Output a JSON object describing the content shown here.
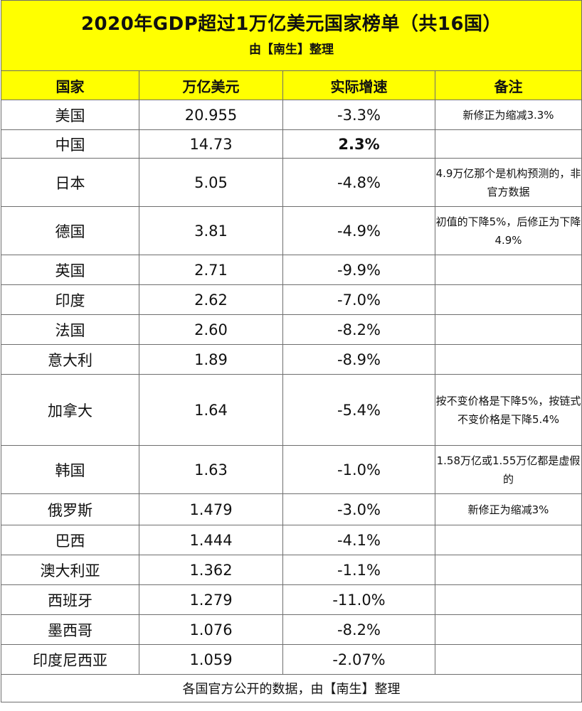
{
  "title": "2020年GDP超过1万亿美元国家榜单（共16国）",
  "subtitle": "由【南生】整理",
  "headers": [
    "国家",
    "万亿美元",
    "实际增速",
    "备注"
  ],
  "rows": [
    {
      "country": "美国",
      "gdp": "20.955",
      "growth": "-3.3%",
      "note": "新修正为缩减3.3%"
    },
    {
      "country": "中国",
      "gdp": "14.73",
      "growth": "2.3%",
      "note": ""
    },
    {
      "country": "日本",
      "gdp": "5.05",
      "growth": "-4.8%",
      "note": "4.9万亿那个是机构预测的，非官方数据"
    },
    {
      "country": "德国",
      "gdp": "3.81",
      "growth": "-4.9%",
      "note": "初值的下降5%，后修正为下降4.9%"
    },
    {
      "country": "英国",
      "gdp": "2.71",
      "growth": "-9.9%",
      "note": ""
    },
    {
      "country": "印度",
      "gdp": "2.62",
      "growth": "-7.0%",
      "note": ""
    },
    {
      "country": "法国",
      "gdp": "2.60",
      "growth": "-8.2%",
      "note": ""
    },
    {
      "country": "意大利",
      "gdp": "1.89",
      "growth": "-8.9%",
      "note": ""
    },
    {
      "country": "加拿大",
      "gdp": "1.64",
      "growth": "-5.4%",
      "note": "按不变价格是下降5%，按链式不变价格是下降5.4%"
    },
    {
      "country": "韩国",
      "gdp": "1.63",
      "growth": "-1.0%",
      "note": "1.58万亿或1.55万亿都是虚假的"
    },
    {
      "country": "俄罗斯",
      "gdp": "1.479",
      "growth": "-3.0%",
      "note": "新修正为缩减3%"
    },
    {
      "country": "巴西",
      "gdp": "1.444",
      "growth": "-4.1%",
      "note": ""
    },
    {
      "country": "澳大利亚",
      "gdp": "1.362",
      "growth": "-1.1%",
      "note": ""
    },
    {
      "country": "西班牙",
      "gdp": "1.279",
      "growth": "-11.0%",
      "note": ""
    },
    {
      "country": "墨西哥",
      "gdp": "1.076",
      "growth": "-8.2%",
      "note": ""
    },
    {
      "country": "印度尼西亚",
      "gdp": "1.059",
      "growth": "-2.07%",
      "note": ""
    }
  ],
  "footer": "各国官方公开的数据，由【南生】整理",
  "colors": {
    "header_background": "#ffff00",
    "border": "#6e6e6e"
  }
}
